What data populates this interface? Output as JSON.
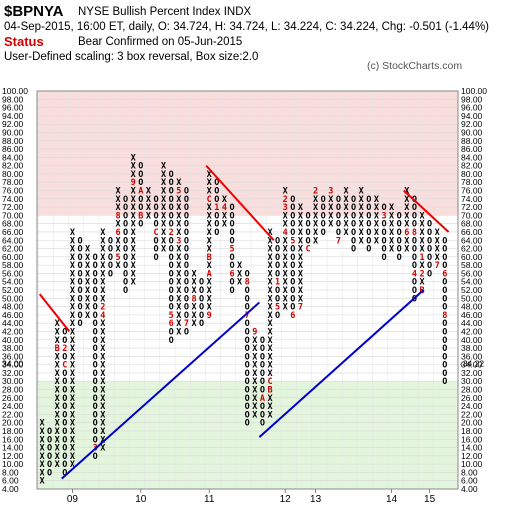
{
  "header": {
    "symbol": "$BPNYA",
    "name": "NYSE Bullish Percent Index  INDX",
    "ohlc": "04-Sep-2015, 16:00 ET, daily, O: 34.724, H: 34.724, L: 34.224, C: 34.224, Chg: -0.501 (-1.44%)",
    "status_label": "Status",
    "status_text": "Bear Confirmed on 05-Jun-2015",
    "scaling": "User-Defined scaling: 3 box reversal, Box size:2.0",
    "credit": "(c) StockCharts.com"
  },
  "colors": {
    "overbought_zone": "#f9dede",
    "oversold_zone": "#e3f5dc",
    "x_mark": "#000000",
    "o_mark": "#000000",
    "month_mark": "#cc0000",
    "support_line": "#0000cc",
    "resistance_line": "#ee0000",
    "last_price": "#cc0000"
  },
  "chart_data": {
    "type": "point-and-figure",
    "box_size": 2,
    "reversal": 3,
    "ylim": [
      4,
      100
    ],
    "y_ticks": [
      "4.00",
      "6.00",
      "8.00",
      "10.00",
      "12.00",
      "14.00",
      "16.00",
      "18.00",
      "20.00",
      "22.00",
      "24.00",
      "26.00",
      "28.00",
      "30.00",
      "32.00",
      "34.00",
      "36.00",
      "38.00",
      "40.00",
      "42.00",
      "44.00",
      "46.00",
      "48.00",
      "50.00",
      "52.00",
      "54.00",
      "56.00",
      "58.00",
      "60.00",
      "62.00",
      "64.00",
      "66.00",
      "68.00",
      "70.00",
      "72.00",
      "74.00",
      "76.00",
      "78.00",
      "80.00",
      "82.00",
      "84.00",
      "86.00",
      "88.00",
      "90.00",
      "92.00",
      "94.00",
      "96.00",
      "98.00",
      "100.00"
    ],
    "zones": [
      {
        "from": 70,
        "to": 100,
        "name": "overbought"
      },
      {
        "from": 4,
        "to": 30,
        "name": "oversold"
      }
    ],
    "year_labels": [
      {
        "label": "09",
        "column": 4
      },
      {
        "label": "10",
        "column": 13
      },
      {
        "label": "11",
        "column": 22
      },
      {
        "label": "12",
        "column": 32
      },
      {
        "label": "13",
        "column": 36
      },
      {
        "label": "14",
        "column": 46
      },
      {
        "label": "15",
        "column": 51
      }
    ],
    "last_price": {
      "value": 34.224,
      "label": "34.22",
      "axis_label": "34.00"
    },
    "columns": [
      {
        "type": "X",
        "low": 6,
        "high": 20
      },
      {
        "type": "O",
        "low": 8,
        "high": 18
      },
      {
        "type": "X",
        "low": 10,
        "high": 44,
        "months": [
          {
            "v": 38,
            "m": "B"
          }
        ]
      },
      {
        "type": "O",
        "low": 8,
        "high": 42,
        "months": [
          {
            "v": 34,
            "m": "C"
          },
          {
            "v": 38,
            "m": "2"
          }
        ]
      },
      {
        "type": "X",
        "low": 10,
        "high": 66
      },
      {
        "type": "O",
        "low": 44,
        "high": 64
      },
      {
        "type": "X",
        "low": 46,
        "high": 62
      },
      {
        "type": "O",
        "low": 12,
        "high": 60,
        "months": [
          {
            "v": 14,
            "m": "3"
          }
        ]
      },
      {
        "type": "X",
        "low": 14,
        "high": 66,
        "months": [
          {
            "v": 46,
            "m": "4"
          },
          {
            "v": 48,
            "m": "2"
          }
        ]
      },
      {
        "type": "O",
        "low": 56,
        "high": 64
      },
      {
        "type": "X",
        "low": 58,
        "high": 76,
        "months": [
          {
            "v": 56,
            "m": "7"
          },
          {
            "v": 60,
            "m": "5"
          },
          {
            "v": 66,
            "m": "6"
          },
          {
            "v": 70,
            "m": "8"
          }
        ]
      },
      {
        "type": "O",
        "low": 52,
        "high": 74
      },
      {
        "type": "X",
        "low": 54,
        "high": 84,
        "months": [
          {
            "v": 78,
            "m": "9"
          }
        ]
      },
      {
        "type": "O",
        "low": 68,
        "high": 82,
        "months": [
          {
            "v": 70,
            "m": "B"
          },
          {
            "v": 76,
            "m": "A"
          }
        ]
      },
      {
        "type": "X",
        "low": 70,
        "high": 76
      },
      {
        "type": "O",
        "low": 60,
        "high": 74,
        "months": [
          {
            "v": 66,
            "m": "C"
          }
        ]
      },
      {
        "type": "X",
        "low": 62,
        "high": 82
      },
      {
        "type": "O",
        "low": 40,
        "high": 80,
        "months": [
          {
            "v": 44,
            "m": "6"
          },
          {
            "v": 46,
            "m": "5"
          },
          {
            "v": 66,
            "m": "2"
          }
        ]
      },
      {
        "type": "X",
        "low": 42,
        "high": 78,
        "months": [
          {
            "v": 64,
            "m": "3"
          },
          {
            "v": 76,
            "m": "5"
          }
        ]
      },
      {
        "type": "O",
        "low": 42,
        "high": 76,
        "months": [
          {
            "v": 44,
            "m": "7"
          }
        ]
      },
      {
        "type": "X",
        "low": 44,
        "high": 56,
        "months": [
          {
            "v": 50,
            "m": "8"
          }
        ]
      },
      {
        "type": "O",
        "low": 44,
        "high": 54
      },
      {
        "type": "X",
        "low": 46,
        "high": 80,
        "months": [
          {
            "v": 46,
            "m": "9"
          },
          {
            "v": 56,
            "m": "A"
          },
          {
            "v": 60,
            "m": "B"
          },
          {
            "v": 74,
            "m": "C"
          }
        ]
      },
      {
        "type": "O",
        "low": 66,
        "high": 78,
        "months": [
          {
            "v": 72,
            "m": "1"
          }
        ]
      },
      {
        "type": "X",
        "low": 68,
        "high": 74,
        "months": [
          {
            "v": 72,
            "m": "4"
          }
        ]
      },
      {
        "type": "O",
        "low": 52,
        "high": 72,
        "months": [
          {
            "v": 56,
            "m": "6"
          },
          {
            "v": 62,
            "m": "5"
          }
        ]
      },
      {
        "type": "X",
        "low": 54,
        "high": 58
      },
      {
        "type": "O",
        "low": 20,
        "high": 56,
        "months": [
          {
            "v": 46,
            "m": "7"
          },
          {
            "v": 54,
            "m": "8"
          }
        ]
      },
      {
        "type": "X",
        "low": 22,
        "high": 42,
        "months": [
          {
            "v": 42,
            "m": "9"
          }
        ]
      },
      {
        "type": "O",
        "low": 20,
        "high": 40,
        "months": [
          {
            "v": 26,
            "m": "A"
          }
        ]
      },
      {
        "type": "X",
        "low": 22,
        "high": 66,
        "months": [
          {
            "v": 28,
            "m": "B"
          },
          {
            "v": 30,
            "m": "C"
          }
        ]
      },
      {
        "type": "O",
        "low": 46,
        "high": 64,
        "months": [
          {
            "v": 48,
            "m": "5"
          },
          {
            "v": 54,
            "m": "1"
          }
        ]
      },
      {
        "type": "X",
        "low": 48,
        "high": 76,
        "months": [
          {
            "v": 72,
            "m": "3"
          },
          {
            "v": 66,
            "m": "4"
          },
          {
            "v": 74,
            "m": "2"
          }
        ]
      },
      {
        "type": "O",
        "low": 46,
        "high": 74,
        "months": [
          {
            "v": 46,
            "m": "6"
          },
          {
            "v": 64,
            "m": "5"
          }
        ]
      },
      {
        "type": "X",
        "low": 48,
        "high": 72,
        "months": [
          {
            "v": 48,
            "m": "7"
          }
        ]
      },
      {
        "type": "O",
        "low": 62,
        "high": 70,
        "months": [
          {
            "v": 62,
            "m": "C"
          }
        ]
      },
      {
        "type": "X",
        "low": 64,
        "high": 76,
        "months": [
          {
            "v": 76,
            "m": "2"
          }
        ]
      },
      {
        "type": "O",
        "low": 66,
        "high": 74
      },
      {
        "type": "X",
        "low": 68,
        "high": 76,
        "months": [
          {
            "v": 76,
            "m": "3"
          }
        ]
      },
      {
        "type": "O",
        "low": 64,
        "high": 74,
        "months": [
          {
            "v": 64,
            "m": "7"
          }
        ]
      },
      {
        "type": "X",
        "low": 66,
        "high": 76
      },
      {
        "type": "O",
        "low": 62,
        "high": 74
      },
      {
        "type": "X",
        "low": 64,
        "high": 76
      },
      {
        "type": "O",
        "low": 62,
        "high": 74
      },
      {
        "type": "X",
        "low": 64,
        "high": 74
      },
      {
        "type": "O",
        "low": 60,
        "high": 72,
        "months": [
          {
            "v": 70,
            "m": "3"
          }
        ]
      },
      {
        "type": "X",
        "low": 62,
        "high": 72
      },
      {
        "type": "O",
        "low": 60,
        "high": 70
      },
      {
        "type": "X",
        "low": 62,
        "high": 76,
        "months": [
          {
            "v": 66,
            "m": "6"
          }
        ]
      },
      {
        "type": "O",
        "low": 50,
        "high": 74,
        "months": [
          {
            "v": 56,
            "m": "4"
          },
          {
            "v": 66,
            "m": "8"
          }
        ]
      },
      {
        "type": "X",
        "low": 52,
        "high": 70,
        "months": [
          {
            "v": 52,
            "m": "B"
          },
          {
            "v": 56,
            "m": "2"
          },
          {
            "v": 60,
            "m": "1"
          }
        ]
      },
      {
        "type": "O",
        "low": 56,
        "high": 68
      },
      {
        "type": "X",
        "low": 58,
        "high": 66,
        "months": [
          {
            "v": 58,
            "m": "7"
          }
        ]
      },
      {
        "type": "O",
        "low": 30,
        "high": 64,
        "months": [
          {
            "v": 46,
            "m": "8"
          },
          {
            "v": 56,
            "m": "6"
          }
        ]
      }
    ],
    "trend_lines": [
      {
        "kind": "resistance",
        "from": {
          "col": -0.3,
          "v": 51
        },
        "to": {
          "col": 3.6,
          "v": 42
        }
      },
      {
        "kind": "resistance",
        "from": {
          "col": 21.6,
          "v": 82
        },
        "to": {
          "col": 30.5,
          "v": 64
        }
      },
      {
        "kind": "resistance",
        "from": {
          "col": 47.6,
          "v": 76
        },
        "to": {
          "col": 53.5,
          "v": 66
        }
      },
      {
        "kind": "support",
        "from": {
          "col": 2.6,
          "v": 6.5
        },
        "to": {
          "col": 28.6,
          "v": 49
        }
      },
      {
        "kind": "support",
        "from": {
          "col": 28.6,
          "v": 16.5
        },
        "to": {
          "col": 50.2,
          "v": 52
        }
      }
    ]
  }
}
